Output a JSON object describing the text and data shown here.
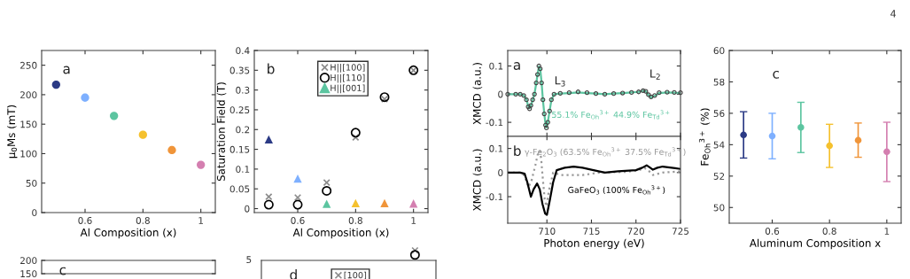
{
  "chart_data": [
    {
      "type": "scatter",
      "ylabel": "μ$_{0}$Ms (mT)",
      "xlabel": "Al Composition (x)",
      "annotations": [
        "a"
      ],
      "x": [
        0.5,
        0.6,
        0.7,
        0.8,
        0.9,
        1
      ],
      "xlim": [
        0.45,
        1.05
      ],
      "xticks": [
        0.6,
        0.8,
        1
      ],
      "ylim": [
        0,
        275
      ],
      "yticks": [
        0,
        50,
        100,
        150,
        200,
        250
      ],
      "marker": "circle",
      "series": [
        {
          "values": [
            217,
            195,
            164,
            132,
            106,
            81
          ],
          "colors": [
            "#2b3a85",
            "#7eb0ff",
            "#5cc5a0",
            "#f5c12e",
            "#f0953a",
            "#d47fb0"
          ]
        }
      ]
    },
    {
      "type": "scatter",
      "ylabel": "Saturation Field (T)",
      "xlabel": "Al Composition (x)",
      "annotations": [
        "b"
      ],
      "x": [
        0.5,
        0.6,
        0.7,
        0.8,
        0.9,
        1
      ],
      "xlim": [
        0.45,
        1.05
      ],
      "xticks": [
        0.6,
        0.8,
        1
      ],
      "ylim": [
        -0.01,
        0.4
      ],
      "yticks": [
        0,
        0.05,
        0.1,
        0.15,
        0.2,
        0.25,
        0.3,
        0.35,
        0.4
      ],
      "legend": "top",
      "series": [
        {
          "name": "H||[100]",
          "color": "#8c8c8c",
          "marker": "cross",
          "values": [
            0.03,
            0.028,
            0.066,
            0.18,
            0.277,
            0.35
          ]
        },
        {
          "name": "H||[110]",
          "color": "#000000",
          "marker": "circle",
          "values": [
            0.01,
            0.01,
            0.045,
            0.192,
            0.282,
            0.35
          ]
        },
        {
          "name": "H||[001]",
          "color": "#5cc5a0",
          "marker": "triangle",
          "values": [
            0.175,
            0.076,
            0.012,
            0.014,
            0.014,
            0.013
          ],
          "colors": [
            "#2b3a85",
            "#7eb0ff",
            "#5cc5a0",
            "#f5c12e",
            "#f0953a",
            "#d47fb0"
          ]
        }
      ]
    },
    {
      "type": "line",
      "ylabel": "XMCD (a.u.)",
      "tick_labels": "y",
      "xlim": [
        705.6,
        725
      ],
      "xticks": [
        710,
        715,
        720,
        725
      ],
      "ylim": [
        -0.15,
        0.155
      ],
      "yticks": [
        -0.1,
        0,
        0.1
      ],
      "annotations": [
        "a",
        "L$_{3}$",
        "L$_{2}$"
      ],
      "x": [
        705.6,
        706.5,
        707.0,
        707.4,
        707.7,
        707.9,
        708.05,
        708.2,
        708.4,
        708.6,
        708.8,
        708.95,
        709.1,
        709.25,
        709.4,
        709.55,
        709.7,
        709.85,
        709.95,
        710.1,
        710.3,
        710.5,
        710.8,
        711.5,
        712.5,
        713.5,
        714.5,
        715.5,
        716.5,
        717.5,
        718.5,
        719.5,
        720.3,
        720.8,
        721.1,
        721.4,
        721.7,
        722.1,
        722.6,
        723.5,
        724.3,
        725
      ],
      "series": [
        {
          "type": "scatter",
          "marker": "circle",
          "color": "#404040",
          "values": [
            0,
            0,
            0,
            -0.005,
            -0.02,
            -0.045,
            -0.052,
            -0.04,
            -0.02,
            0.0,
            0.04,
            0.07,
            0.1,
            0.09,
            0.04,
            -0.02,
            -0.07,
            -0.11,
            -0.12,
            -0.1,
            -0.06,
            -0.02,
            0.0,
            0.003,
            0.005,
            0.008,
            0.005,
            0.002,
            0.0,
            0.002,
            0.004,
            0.006,
            0.008,
            0.012,
            0.01,
            -0.002,
            -0.01,
            -0.005,
            0.005,
            0.007,
            0.006,
            0.005
          ]
        },
        {
          "type": "line",
          "name": "55.1% Fe$_{Oh}$$^{3+}$ 44.9% Fe$_{Td}$$^{3+}$",
          "color": "#5cc5a0",
          "values": [
            0,
            0,
            0,
            -0.004,
            -0.018,
            -0.042,
            -0.05,
            -0.04,
            -0.022,
            0.0,
            0.038,
            0.07,
            0.098,
            0.09,
            0.042,
            -0.02,
            -0.068,
            -0.108,
            -0.118,
            -0.1,
            -0.06,
            -0.022,
            0.0,
            0.002,
            0.004,
            0.006,
            0.004,
            0.002,
            0.0,
            0.002,
            0.004,
            0.006,
            0.008,
            0.012,
            0.01,
            -0.003,
            -0.012,
            -0.006,
            0.004,
            0.006,
            0.005,
            0.004
          ]
        }
      ]
    },
    {
      "type": "line",
      "ylabel": "XMCD (a.u.)",
      "xlabel": "Photon energy (eV)",
      "xlim": [
        705.6,
        725
      ],
      "xticks": [
        710,
        715,
        720,
        725
      ],
      "ylim": [
        -0.21,
        0.15
      ],
      "yticks": [
        -0.1,
        0,
        0.1
      ],
      "annotations": [
        "b"
      ],
      "series": [
        {
          "name": "γ-Fe$_{2}$O$_{3}$ (63.5% Fe$_{Oh}$$^{3+}$ 37.5% Fe$_{Td}$$^{3+}$)",
          "color": "#999999",
          "line_style": "dotted",
          "x": [
            705.6,
            707.0,
            707.4,
            707.7,
            707.95,
            708.3,
            708.7,
            709.0,
            709.2,
            709.35,
            709.55,
            709.75,
            709.95,
            710.2,
            710.7,
            711.5,
            712.5,
            714.0,
            716.0,
            719.0,
            720.3,
            721.0,
            721.5,
            721.9,
            723.0,
            725
          ],
          "values": [
            0,
            0,
            -0.01,
            -0.035,
            -0.06,
            -0.03,
            0.03,
            0.08,
            0.09,
            0.06,
            -0.03,
            -0.11,
            -0.14,
            -0.08,
            0.0,
            -0.01,
            -0.01,
            -0.01,
            0.0,
            0.003,
            0.01,
            0.018,
            0.005,
            -0.01,
            0.0,
            0.005
          ]
        },
        {
          "name": "GaFeO$_{3}$ (100% Fe$_{Oh}$$^{3+}$)",
          "color": "#000000",
          "x": [
            705.6,
            707.0,
            707.5,
            707.8,
            708.2,
            708.5,
            708.9,
            709.2,
            709.5,
            709.8,
            710.0,
            710.3,
            710.7,
            711.1,
            712.0,
            713.0,
            714.0,
            715.0,
            716.5,
            718.0,
            720.0,
            720.7,
            721.2,
            721.6,
            721.9,
            722.4,
            723.0,
            724.0,
            725
          ],
          "values": [
            0,
            0,
            -0.005,
            -0.04,
            -0.1,
            -0.07,
            -0.045,
            -0.07,
            -0.13,
            -0.17,
            -0.175,
            -0.12,
            -0.04,
            0.01,
            0.02,
            0.025,
            0.02,
            0.012,
            0.0,
            0.005,
            0.01,
            0.02,
            0.03,
            0.02,
            0.012,
            0.02,
            0.025,
            0.02,
            0.015
          ]
        }
      ]
    },
    {
      "type": "scatter",
      "ylabel": "Fe$_{Oh}$$^{3+}$ (%)",
      "xlabel": "Aluminum Composition x",
      "annotations": [
        "c"
      ],
      "x": [
        0.5,
        0.6,
        0.7,
        0.8,
        0.9,
        1
      ],
      "xlim": [
        0.45,
        1.05
      ],
      "xticks": [
        0.6,
        0.8,
        1
      ],
      "ylim": [
        49,
        60
      ],
      "yticks": [
        50,
        52,
        54,
        56,
        58,
        60
      ],
      "marker": "circle",
      "series": [
        {
          "values": [
            54.62,
            54.55,
            55.1,
            53.93,
            54.28,
            53.55
          ],
          "errors": [
            [
              53.15,
              56.1
            ],
            [
              53.1,
              56.0
            ],
            [
              53.5,
              56.7
            ],
            [
              52.55,
              55.3
            ],
            [
              53.2,
              55.38
            ],
            [
              51.65,
              55.43
            ]
          ],
          "colors": [
            "#2b3a85",
            "#7eb0ff",
            "#5cc5a0",
            "#f5c12e",
            "#f0953a",
            "#d47fb0"
          ]
        }
      ]
    },
    {
      "type": "scatter",
      "annotations": [
        "c"
      ],
      "tick_labels": "y",
      "xlim": [
        0.45,
        1.05
      ],
      "ylim": [
        150,
        200
      ],
      "yticks": [
        150,
        200
      ]
    },
    {
      "type": "other",
      "annotations": [
        "d",
        "5"
      ],
      "legend": "top",
      "series": [
        {
          "name": "[100]",
          "color": "#8c8c8c",
          "marker": "cross"
        }
      ]
    },
    {
      "type": "other",
      "annotations": [
        "4"
      ]
    }
  ]
}
